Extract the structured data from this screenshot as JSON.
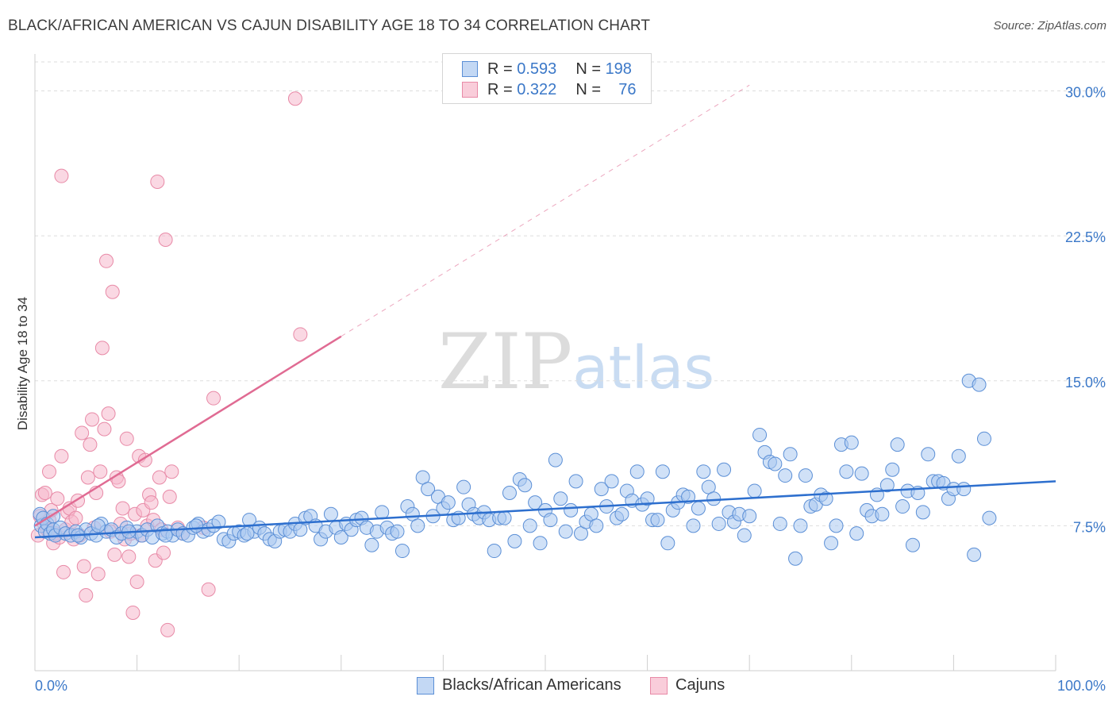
{
  "title": "BLACK/AFRICAN AMERICAN VS CAJUN DISABILITY AGE 18 TO 34 CORRELATION CHART",
  "source": "Source: ZipAtlas.com",
  "watermark": {
    "zip": "ZIP",
    "atlas": "atlas"
  },
  "legend": {
    "rows": [
      {
        "r_label": "R = ",
        "r_value": "0.593",
        "n_label": "N = ",
        "n_value": "198"
      },
      {
        "r_label": "R = ",
        "r_value": "0.322",
        "n_label": "N = ",
        "n_value": "76"
      }
    ]
  },
  "colors": {
    "blue_fill": "#a9c8f0",
    "blue_stroke": "#5b8fd6",
    "blue_line": "#2d6fce",
    "pink_fill": "#f6b8cc",
    "pink_stroke": "#e88aa7",
    "pink_line": "#e06b93",
    "axis_label": "#3b78c8",
    "grid": "#dddddd"
  },
  "chart_data": {
    "type": "scatter",
    "title": "BLACK/AFRICAN AMERICAN VS CAJUN DISABILITY AGE 18 TO 34 CORRELATION CHART",
    "xlabel": "",
    "ylabel": "Disability Age 18 to 34",
    "xlim": [
      0,
      100
    ],
    "ylim": [
      0,
      31.5
    ],
    "x_tick_labels": [
      "0.0%",
      "100.0%"
    ],
    "y_ticks": [
      7.5,
      15.0,
      22.5,
      30.0
    ],
    "y_tick_labels": [
      "7.5%",
      "15.0%",
      "22.5%",
      "30.0%"
    ],
    "grid": true,
    "legend_position": "top-center",
    "series": [
      {
        "name": "Blacks/African Americans",
        "r": 0.593,
        "n": 198,
        "trend": {
          "x": [
            0,
            100
          ],
          "y": [
            6.9,
            9.8
          ]
        },
        "points": [
          [
            0.5,
            8.1
          ],
          [
            0.6,
            7.5
          ],
          [
            0.8,
            7.9
          ],
          [
            1.0,
            7.2
          ],
          [
            1.2,
            7.6
          ],
          [
            1.5,
            7.1
          ],
          [
            1.8,
            7.3
          ],
          [
            2.0,
            7.0
          ],
          [
            2.5,
            7.4
          ],
          [
            3.0,
            7.1
          ],
          [
            3.5,
            7.0
          ],
          [
            4.0,
            7.2
          ],
          [
            4.5,
            6.9
          ],
          [
            5.0,
            7.3
          ],
          [
            5.5,
            7.1
          ],
          [
            6.0,
            7.0
          ],
          [
            6.5,
            7.6
          ],
          [
            7.0,
            7.2
          ],
          [
            7.5,
            7.3
          ],
          [
            8.0,
            6.9
          ],
          [
            8.5,
            7.1
          ],
          [
            9.0,
            7.4
          ],
          [
            9.5,
            6.8
          ],
          [
            10.0,
            7.2
          ],
          [
            10.5,
            7.0
          ],
          [
            11.0,
            7.3
          ],
          [
            11.5,
            6.9
          ],
          [
            12.0,
            7.5
          ],
          [
            12.5,
            7.1
          ],
          [
            13.0,
            7.2
          ],
          [
            13.5,
            7.0
          ],
          [
            14.0,
            7.3
          ],
          [
            14.5,
            7.1
          ],
          [
            15.0,
            7.0
          ],
          [
            15.5,
            7.4
          ],
          [
            16.0,
            7.6
          ],
          [
            16.5,
            7.2
          ],
          [
            17.0,
            7.3
          ],
          [
            17.5,
            7.5
          ],
          [
            18.0,
            7.7
          ],
          [
            18.5,
            6.8
          ],
          [
            19.0,
            6.7
          ],
          [
            19.5,
            7.1
          ],
          [
            20.0,
            7.2
          ],
          [
            20.5,
            7.0
          ],
          [
            21.0,
            7.8
          ],
          [
            21.5,
            7.2
          ],
          [
            22.0,
            7.4
          ],
          [
            22.5,
            7.1
          ],
          [
            23.0,
            6.8
          ],
          [
            23.5,
            6.7
          ],
          [
            24.0,
            7.2
          ],
          [
            24.5,
            7.3
          ],
          [
            25.0,
            7.2
          ],
          [
            25.5,
            7.6
          ],
          [
            26.0,
            7.3
          ],
          [
            26.5,
            7.9
          ],
          [
            27.0,
            8.0
          ],
          [
            27.5,
            7.5
          ],
          [
            28.0,
            6.8
          ],
          [
            28.5,
            7.2
          ],
          [
            29.0,
            8.1
          ],
          [
            29.5,
            7.4
          ],
          [
            30.0,
            6.9
          ],
          [
            30.5,
            7.6
          ],
          [
            31.0,
            7.3
          ],
          [
            31.5,
            7.8
          ],
          [
            32.0,
            7.9
          ],
          [
            32.5,
            7.4
          ],
          [
            33.0,
            6.5
          ],
          [
            33.5,
            7.2
          ],
          [
            34.0,
            8.2
          ],
          [
            34.5,
            7.4
          ],
          [
            35.0,
            7.1
          ],
          [
            35.5,
            7.2
          ],
          [
            36.0,
            6.2
          ],
          [
            36.5,
            8.5
          ],
          [
            37.0,
            8.1
          ],
          [
            37.5,
            7.5
          ],
          [
            38.0,
            10.0
          ],
          [
            38.5,
            9.4
          ],
          [
            39.0,
            8.0
          ],
          [
            39.5,
            9.0
          ],
          [
            40.0,
            8.4
          ],
          [
            40.5,
            8.7
          ],
          [
            41.0,
            7.8
          ],
          [
            41.5,
            7.9
          ],
          [
            42.0,
            9.5
          ],
          [
            42.5,
            8.6
          ],
          [
            43.0,
            8.1
          ],
          [
            43.5,
            7.9
          ],
          [
            44.0,
            8.2
          ],
          [
            44.5,
            7.8
          ],
          [
            45.0,
            6.2
          ],
          [
            45.5,
            7.9
          ],
          [
            46.0,
            7.9
          ],
          [
            46.5,
            9.2
          ],
          [
            47.0,
            6.7
          ],
          [
            47.5,
            9.9
          ],
          [
            48.0,
            9.6
          ],
          [
            48.5,
            7.5
          ],
          [
            49.0,
            8.7
          ],
          [
            49.5,
            6.6
          ],
          [
            50.0,
            8.3
          ],
          [
            50.5,
            7.8
          ],
          [
            51.0,
            10.9
          ],
          [
            51.5,
            8.9
          ],
          [
            52.0,
            7.2
          ],
          [
            52.5,
            8.3
          ],
          [
            53.0,
            9.8
          ],
          [
            53.5,
            7.1
          ],
          [
            54.0,
            7.7
          ],
          [
            54.5,
            8.1
          ],
          [
            55.0,
            7.5
          ],
          [
            55.5,
            9.4
          ],
          [
            56.0,
            8.5
          ],
          [
            56.5,
            9.8
          ],
          [
            57.0,
            7.9
          ],
          [
            57.5,
            8.1
          ],
          [
            58.0,
            9.3
          ],
          [
            58.5,
            8.8
          ],
          [
            59.0,
            10.3
          ],
          [
            59.5,
            8.6
          ],
          [
            60.0,
            8.9
          ],
          [
            60.5,
            7.8
          ],
          [
            61.0,
            7.8
          ],
          [
            61.5,
            10.3
          ],
          [
            62.0,
            6.6
          ],
          [
            62.5,
            8.3
          ],
          [
            63.0,
            8.7
          ],
          [
            63.5,
            9.1
          ],
          [
            64.0,
            9.0
          ],
          [
            64.5,
            7.5
          ],
          [
            65.0,
            8.4
          ],
          [
            65.5,
            10.3
          ],
          [
            66.0,
            9.5
          ],
          [
            66.5,
            8.9
          ],
          [
            67.0,
            7.6
          ],
          [
            67.5,
            10.4
          ],
          [
            68.0,
            8.2
          ],
          [
            68.5,
            7.7
          ],
          [
            69.0,
            8.1
          ],
          [
            69.5,
            7.0
          ],
          [
            70.0,
            8.0
          ],
          [
            70.5,
            9.3
          ],
          [
            71.0,
            12.2
          ],
          [
            71.5,
            11.3
          ],
          [
            72.0,
            10.8
          ],
          [
            72.5,
            10.7
          ],
          [
            73.0,
            7.6
          ],
          [
            73.5,
            10.1
          ],
          [
            74.0,
            11.2
          ],
          [
            74.5,
            5.8
          ],
          [
            75.0,
            7.5
          ],
          [
            75.5,
            10.1
          ],
          [
            76.0,
            8.5
          ],
          [
            76.5,
            8.6
          ],
          [
            77.0,
            9.1
          ],
          [
            77.5,
            8.9
          ],
          [
            78.0,
            6.6
          ],
          [
            78.5,
            7.5
          ],
          [
            79.0,
            11.7
          ],
          [
            79.5,
            10.3
          ],
          [
            80.0,
            11.8
          ],
          [
            80.5,
            7.1
          ],
          [
            81.0,
            10.2
          ],
          [
            81.5,
            8.3
          ],
          [
            82.0,
            8.0
          ],
          [
            82.5,
            9.1
          ],
          [
            83.0,
            8.1
          ],
          [
            83.5,
            9.6
          ],
          [
            84.0,
            10.4
          ],
          [
            84.5,
            11.7
          ],
          [
            85.0,
            8.5
          ],
          [
            85.5,
            9.3
          ],
          [
            86.0,
            6.5
          ],
          [
            86.5,
            9.2
          ],
          [
            87.0,
            8.2
          ],
          [
            87.5,
            11.2
          ],
          [
            88.0,
            9.8
          ],
          [
            88.5,
            9.8
          ],
          [
            89.0,
            9.7
          ],
          [
            89.5,
            8.9
          ],
          [
            90.0,
            9.4
          ],
          [
            90.5,
            11.1
          ],
          [
            91.0,
            9.4
          ],
          [
            91.5,
            15.0
          ],
          [
            92.0,
            6.0
          ],
          [
            92.5,
            14.8
          ],
          [
            93.0,
            12.0
          ],
          [
            93.5,
            7.9
          ],
          [
            1.8,
            8.0
          ],
          [
            4.2,
            7.0
          ],
          [
            6.2,
            7.5
          ],
          [
            9.2,
            7.2
          ],
          [
            12.8,
            7.0
          ],
          [
            15.8,
            7.5
          ],
          [
            20.8,
            7.1
          ]
        ]
      },
      {
        "name": "Cajuns",
        "r": 0.322,
        "n": 76,
        "trend": {
          "x": [
            0,
            30
          ],
          "y": [
            7.5,
            17.3
          ]
        },
        "trend_extended": {
          "x": [
            30,
            70
          ],
          "y": [
            17.3,
            30.3
          ]
        },
        "points": [
          [
            0.3,
            7.0
          ],
          [
            0.5,
            8.0
          ],
          [
            0.7,
            9.1
          ],
          [
            0.9,
            7.6
          ],
          [
            1.0,
            9.2
          ],
          [
            1.2,
            7.3
          ],
          [
            1.4,
            7.8
          ],
          [
            1.6,
            8.3
          ],
          [
            1.8,
            6.6
          ],
          [
            2.0,
            7.1
          ],
          [
            2.2,
            8.9
          ],
          [
            2.4,
            6.9
          ],
          [
            2.6,
            11.1
          ],
          [
            2.8,
            5.1
          ],
          [
            3.0,
            7.3
          ],
          [
            3.2,
            8.2
          ],
          [
            3.4,
            8.4
          ],
          [
            3.6,
            7.7
          ],
          [
            3.8,
            6.8
          ],
          [
            4.0,
            7.9
          ],
          [
            4.2,
            8.8
          ],
          [
            4.4,
            7.0
          ],
          [
            4.6,
            12.3
          ],
          [
            4.8,
            5.4
          ],
          [
            5.0,
            3.9
          ],
          [
            5.2,
            10.0
          ],
          [
            5.4,
            11.7
          ],
          [
            5.6,
            13.0
          ],
          [
            5.8,
            7.4
          ],
          [
            6.0,
            9.2
          ],
          [
            6.2,
            5.0
          ],
          [
            6.4,
            10.3
          ],
          [
            6.6,
            16.7
          ],
          [
            6.8,
            12.5
          ],
          [
            7.0,
            21.2
          ],
          [
            7.2,
            13.3
          ],
          [
            7.4,
            7.2
          ],
          [
            7.6,
            19.6
          ],
          [
            7.8,
            6.0
          ],
          [
            8.0,
            10.0
          ],
          [
            8.2,
            9.8
          ],
          [
            8.4,
            7.6
          ],
          [
            8.6,
            8.4
          ],
          [
            8.8,
            6.8
          ],
          [
            9.0,
            12.0
          ],
          [
            9.2,
            5.9
          ],
          [
            9.4,
            7.1
          ],
          [
            9.6,
            3.0
          ],
          [
            9.8,
            8.1
          ],
          [
            10.0,
            4.6
          ],
          [
            10.2,
            11.1
          ],
          [
            10.4,
            7.0
          ],
          [
            10.6,
            8.3
          ],
          [
            10.8,
            10.9
          ],
          [
            11.0,
            7.5
          ],
          [
            11.2,
            9.1
          ],
          [
            11.4,
            8.7
          ],
          [
            11.6,
            7.8
          ],
          [
            11.8,
            5.7
          ],
          [
            12.0,
            25.3
          ],
          [
            12.2,
            10.0
          ],
          [
            12.4,
            7.3
          ],
          [
            12.6,
            6.1
          ],
          [
            12.8,
            22.3
          ],
          [
            13.0,
            2.1
          ],
          [
            13.2,
            9.0
          ],
          [
            13.4,
            10.3
          ],
          [
            14.0,
            7.4
          ],
          [
            14.5,
            7.1
          ],
          [
            16.5,
            7.4
          ],
          [
            17.0,
            4.2
          ],
          [
            17.5,
            14.1
          ],
          [
            25.5,
            29.6
          ],
          [
            26.0,
            17.4
          ],
          [
            2.6,
            25.6
          ],
          [
            1.4,
            10.3
          ]
        ]
      }
    ]
  },
  "bottom_legend": [
    {
      "label": "Blacks/African Americans"
    },
    {
      "label": "Cajuns"
    }
  ]
}
